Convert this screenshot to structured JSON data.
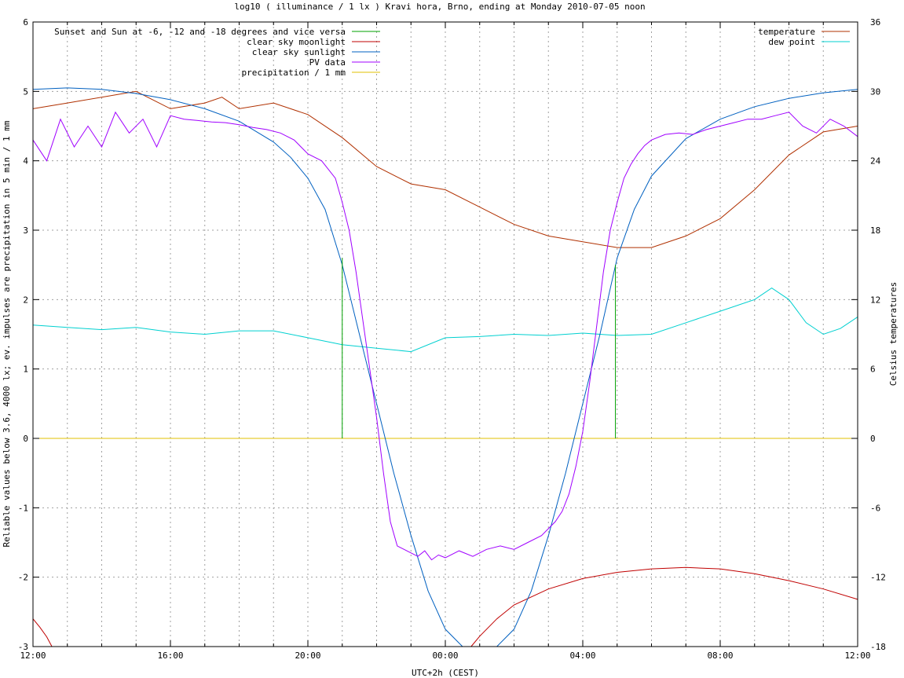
{
  "chart_data": {
    "type": "line",
    "title": "log10 ( illuminance / 1 lx ) Kravi hora, Brno, ending at Monday 2010-07-05 noon",
    "xlabel": "UTC+2h (CEST)",
    "ylabel": "Reliable values below 3.6, 4000 lx; ev. impulses are precipitation in 5 min / 1 mm",
    "y2label": "Celsius temperatures",
    "xlim": [
      -12,
      12
    ],
    "ylim": [
      -3,
      6
    ],
    "y2lim": [
      -18,
      36
    ],
    "grid": true,
    "legend_left_placement": "top-left",
    "legend_right_placement": "top-right",
    "x_tick_labels": [
      "12:00",
      "16:00",
      "20:00",
      "00:00",
      "04:00",
      "08:00",
      "12:00"
    ],
    "y_tick_labels": [
      "-3",
      "-2",
      "-1",
      "0",
      "1",
      "2",
      "3",
      "4",
      "5",
      "6"
    ],
    "y2_tick_labels": [
      "-18",
      "-12",
      "-6",
      "0",
      "6",
      "12",
      "18",
      "24",
      "30",
      "36"
    ],
    "series": [
      {
        "name": "Sunset and Sun at -6, -12 and -18 degrees and vice versa",
        "color": "#00a000",
        "axis": "y",
        "kind": "impulse",
        "x": [
          -3.0,
          -0.75,
          1.1,
          3.2,
          4.25,
          4.95
        ],
        "values": [
          2.6,
          0,
          0,
          0,
          0,
          2.5
        ]
      },
      {
        "name": "clear sky moonlight",
        "color": "#c00000",
        "axis": "y",
        "kind": "line",
        "segments": [
          {
            "x": [
              -12,
              -11.8,
              -11.6,
              -11.45
            ],
            "values": [
              -2.6,
              -2.72,
              -2.86,
              -3.0
            ]
          },
          {
            "x": [
              0.75,
              1.0,
              1.5,
              2.0,
              3.0,
              4.0,
              5.0,
              6.0,
              7.0,
              8.0,
              9.0,
              10.0,
              11.0,
              12.0
            ],
            "values": [
              -3.0,
              -2.85,
              -2.6,
              -2.4,
              -2.17,
              -2.02,
              -1.93,
              -1.88,
              -1.86,
              -1.88,
              -1.95,
              -2.05,
              -2.17,
              -2.32
            ]
          }
        ]
      },
      {
        "name": "clear sky sunlight",
        "color": "#0060c0",
        "axis": "y",
        "kind": "line",
        "x": [
          -12,
          -11,
          -10,
          -9,
          -8,
          -7,
          -6,
          -5,
          -4.5,
          -4,
          -3.5,
          -3,
          -2.5,
          -2,
          -1.5,
          -1,
          -0.5,
          0,
          0.5,
          1,
          1.5,
          2,
          2.5,
          3,
          3.5,
          4,
          4.5,
          5,
          5.5,
          6,
          7,
          8,
          9,
          10,
          11,
          12
        ],
        "values": [
          5.03,
          5.05,
          5.03,
          4.97,
          4.88,
          4.75,
          4.57,
          4.27,
          4.05,
          3.75,
          3.3,
          2.5,
          1.5,
          0.5,
          -0.5,
          -1.4,
          -2.2,
          -2.75,
          -3.0,
          -3.0,
          -3.0,
          -2.75,
          -2.2,
          -1.4,
          -0.5,
          0.5,
          1.5,
          2.6,
          3.3,
          3.78,
          4.32,
          4.6,
          4.78,
          4.9,
          4.98,
          5.03
        ]
      },
      {
        "name": "PV data",
        "color": "#a000ff",
        "axis": "y",
        "kind": "line",
        "x": [
          -12,
          -11.6,
          -11.2,
          -10.8,
          -10.4,
          -10.0,
          -9.6,
          -9.2,
          -8.8,
          -8.4,
          -8.0,
          -7.6,
          -7.2,
          -6.8,
          -6.4,
          -6.0,
          -5.6,
          -5.2,
          -4.8,
          -4.4,
          -4.0,
          -3.6,
          -3.2,
          -3.0,
          -2.8,
          -2.6,
          -2.4,
          -2.2,
          -2.0,
          -1.8,
          -1.6,
          -1.4,
          -1.2,
          -1.0,
          -0.8,
          -0.6,
          -0.4,
          -0.2,
          0.0,
          0.4,
          0.8,
          1.2,
          1.6,
          2.0,
          2.4,
          2.8,
          3.2,
          3.4,
          3.6,
          3.8,
          4.0,
          4.2,
          4.4,
          4.6,
          4.8,
          5.0,
          5.2,
          5.4,
          5.6,
          5.8,
          6.0,
          6.4,
          6.8,
          7.2,
          7.6,
          8.0,
          8.4,
          8.8,
          9.2,
          9.6,
          10.0,
          10.4,
          10.8,
          11.2,
          11.6,
          12.0
        ],
        "values": [
          4.3,
          4.0,
          4.6,
          4.2,
          4.5,
          4.2,
          4.7,
          4.4,
          4.6,
          4.2,
          4.65,
          4.6,
          4.58,
          4.56,
          4.55,
          4.52,
          4.48,
          4.45,
          4.4,
          4.3,
          4.1,
          4.0,
          3.75,
          3.4,
          3.0,
          2.4,
          1.7,
          1.0,
          0.3,
          -0.5,
          -1.2,
          -1.55,
          -1.6,
          -1.65,
          -1.7,
          -1.62,
          -1.75,
          -1.68,
          -1.72,
          -1.62,
          -1.7,
          -1.6,
          -1.55,
          -1.6,
          -1.5,
          -1.4,
          -1.2,
          -1.05,
          -0.8,
          -0.4,
          0.1,
          0.8,
          1.6,
          2.4,
          3.0,
          3.4,
          3.75,
          3.95,
          4.1,
          4.22,
          4.3,
          4.38,
          4.4,
          4.38,
          4.45,
          4.5,
          4.55,
          4.6,
          4.6,
          4.65,
          4.7,
          4.5,
          4.4,
          4.6,
          4.5,
          4.35
        ]
      },
      {
        "name": "precipitation / 1 mm",
        "color": "#e0c000",
        "axis": "y",
        "kind": "line",
        "x": [
          -12,
          12
        ],
        "values": [
          0,
          0
        ]
      },
      {
        "name": "temperature",
        "color": "#b03000",
        "axis": "y2",
        "kind": "line",
        "x": [
          -12,
          -11,
          -10,
          -9,
          -8,
          -7,
          -6.5,
          -6,
          -5,
          -4,
          -3,
          -2,
          -1,
          0,
          1,
          2,
          3,
          4,
          5,
          6,
          7,
          8,
          9,
          10,
          11,
          12
        ],
        "values": [
          28.5,
          29.0,
          29.5,
          30.0,
          28.5,
          29.0,
          29.5,
          28.5,
          29.0,
          28.0,
          26.0,
          23.5,
          22.0,
          21.5,
          20.0,
          18.5,
          17.5,
          17.0,
          16.5,
          16.5,
          17.5,
          19.0,
          21.5,
          24.5,
          26.5,
          27.0
        ]
      },
      {
        "name": "dew point",
        "color": "#00d0d0",
        "axis": "y2",
        "kind": "line",
        "x": [
          -12,
          -11,
          -10,
          -9,
          -8,
          -7,
          -6,
          -5,
          -4,
          -3,
          -2,
          -1,
          0,
          1,
          2,
          3,
          4,
          5,
          6,
          7,
          8,
          9,
          9.5,
          10,
          10.5,
          11,
          11.5,
          12
        ],
        "values": [
          9.8,
          9.6,
          9.4,
          9.6,
          9.2,
          9.0,
          9.3,
          9.3,
          8.7,
          8.1,
          7.8,
          7.5,
          8.7,
          8.8,
          9.0,
          8.9,
          9.1,
          8.9,
          9.0,
          10.0,
          11.0,
          12.0,
          13.0,
          12.0,
          10.0,
          9.0,
          9.5,
          10.5
        ]
      }
    ]
  }
}
